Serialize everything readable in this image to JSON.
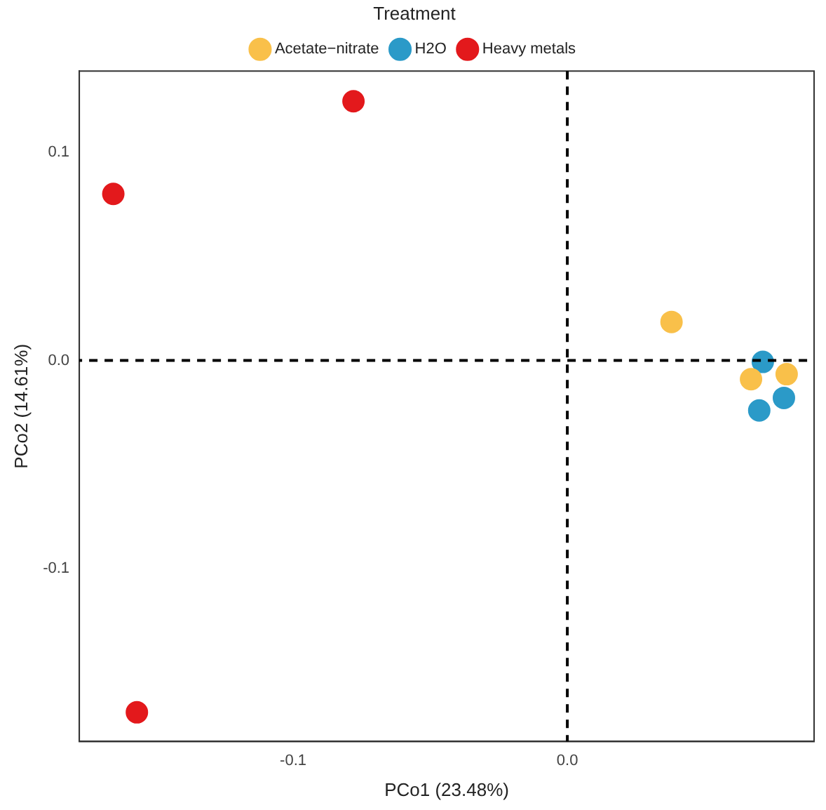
{
  "chart_data": {
    "type": "scatter",
    "xlabel": "PCo1 (23.48%)",
    "ylabel": "PCo2 (14.61%)",
    "legend_title": "Treatment",
    "legend": "top",
    "grid": false,
    "marker": "circle",
    "xlim": [
      -0.178,
      0.09
    ],
    "ylim": [
      -0.183,
      0.139
    ],
    "xticks": [
      {
        "value": -0.1,
        "label": "-0.1"
      },
      {
        "value": 0,
        "label": "0.0"
      }
    ],
    "yticks": [
      {
        "value": -0.1,
        "label": "-0.1"
      },
      {
        "value": 0,
        "label": "0.0"
      },
      0.1
    ],
    "ref_lines": [
      {
        "axis": "x",
        "value": 0,
        "color": "#000000",
        "line_style": "dashed"
      },
      {
        "axis": "y",
        "value": 0,
        "color": "#000000",
        "line_style": "dashed"
      }
    ],
    "series": [
      {
        "name": "Acetate−nitrate",
        "color": "#f9c04a",
        "x": [
          0.038,
          0.067,
          0.08
        ],
        "values": [
          0.0185,
          -0.009,
          -0.0066
        ]
      },
      {
        "name": "H2O",
        "color": "#2b9ac8",
        "x": [
          0.0713,
          0.07,
          0.079
        ],
        "values": [
          -0.0007,
          -0.024,
          -0.018
        ]
      },
      {
        "name": "Heavy metals",
        "color": "#e3191c",
        "x": [
          -0.1656,
          -0.078,
          -0.157
        ],
        "values": [
          0.08,
          0.1245,
          -0.169
        ]
      }
    ]
  }
}
